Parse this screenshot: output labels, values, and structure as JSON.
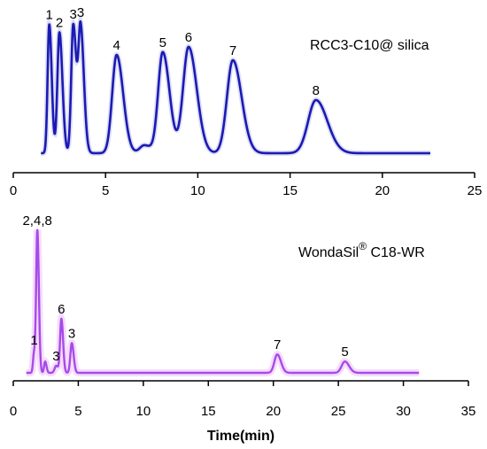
{
  "chart_data": [
    {
      "type": "line",
      "title": "RCC3-C10@ silica",
      "xlabel": "",
      "ylabel": "",
      "xlim": [
        0,
        25
      ],
      "xticks": [
        0,
        5,
        10,
        15,
        20,
        25
      ],
      "x_range": [
        1.5,
        22.6
      ],
      "color": "#1a1ab5",
      "baseline_level": 0.0,
      "peaks": [
        {
          "label": "1",
          "t": 1.95,
          "height": 0.97,
          "width": 0.09
        },
        {
          "label": "2",
          "t": 2.5,
          "height": 0.91,
          "width": 0.11
        },
        {
          "label": "3",
          "t": 3.25,
          "height": 0.97,
          "width": 0.11
        },
        {
          "label": "3",
          "t": 3.65,
          "height": 0.94,
          "width": 0.12
        },
        {
          "label": "4",
          "t": 5.6,
          "height": 0.74,
          "width": 0.24
        },
        {
          "label": "",
          "t": 7.1,
          "height": 0.06,
          "width": 0.25
        },
        {
          "label": "5",
          "t": 8.1,
          "height": 0.76,
          "width": 0.25
        },
        {
          "label": "6",
          "t": 9.5,
          "height": 0.8,
          "width": 0.3
        },
        {
          "label": "7",
          "t": 11.9,
          "height": 0.7,
          "width": 0.32
        },
        {
          "label": "8",
          "t": 16.4,
          "height": 0.4,
          "width": 0.42
        }
      ]
    },
    {
      "type": "line",
      "title_main": "WondaSil",
      "title_sup": "®",
      "title_rest": " C18-WR",
      "xlabel": "Time(min)",
      "ylabel": "",
      "xlim": [
        0,
        35
      ],
      "xticks": [
        0,
        5,
        10,
        15,
        20,
        25,
        30,
        35
      ],
      "x_range": [
        1.0,
        31.2
      ],
      "color": "#a64be8",
      "baseline_level": 0.0,
      "peaks": [
        {
          "label": "1",
          "t": 1.6,
          "height": 0.14,
          "width": 0.08
        },
        {
          "label": "2,4,8",
          "t": 1.85,
          "height": 1.0,
          "width": 0.09
        },
        {
          "label": "",
          "t": 2.45,
          "height": 0.08,
          "width": 0.08
        },
        {
          "label": "3",
          "t": 3.3,
          "height": 0.05,
          "width": 0.12
        },
        {
          "label": "6",
          "t": 3.7,
          "height": 0.38,
          "width": 0.1
        },
        {
          "label": "3",
          "t": 4.5,
          "height": 0.21,
          "width": 0.11
        },
        {
          "label": "7",
          "t": 20.3,
          "height": 0.13,
          "width": 0.22
        },
        {
          "label": "5",
          "t": 25.5,
          "height": 0.08,
          "width": 0.25
        }
      ]
    }
  ]
}
